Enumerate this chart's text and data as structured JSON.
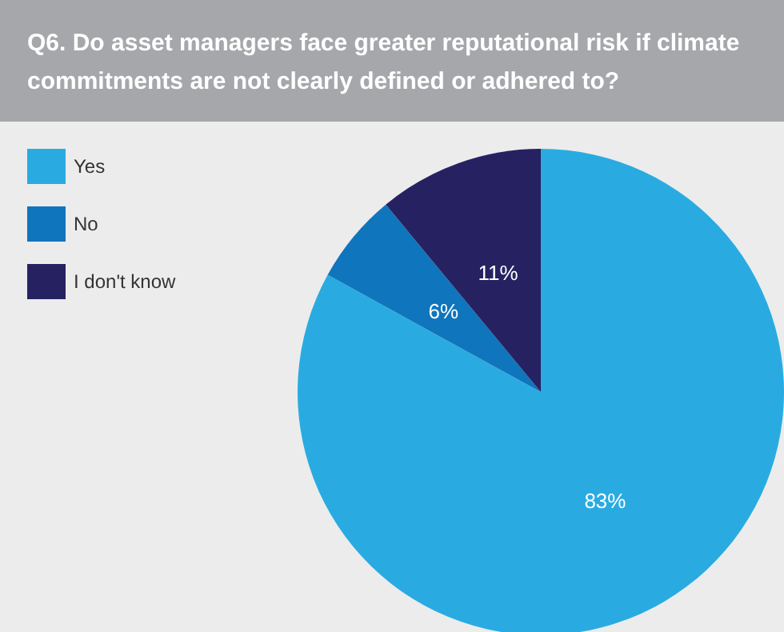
{
  "chart_data": {
    "type": "pie",
    "title": "Q6. Do asset managers face greater reputational risk if climate commitments are not clearly defined or adhered to?",
    "categories": [
      "Yes",
      "No",
      "I don't know"
    ],
    "values": [
      83,
      6,
      11
    ],
    "colors": [
      "#29abe2",
      "#0f75bc",
      "#262262"
    ],
    "value_labels": [
      "83%",
      "6%",
      "11%"
    ],
    "legend": "top left"
  }
}
